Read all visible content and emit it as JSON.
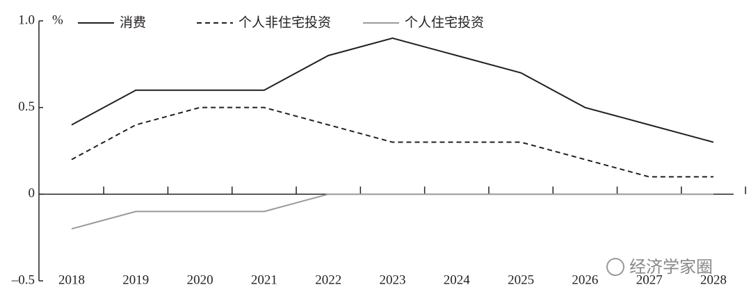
{
  "chart_data": {
    "type": "line",
    "y_label": "%",
    "categories": [
      "2018",
      "2019",
      "2020",
      "2021",
      "2022",
      "2023",
      "2024",
      "2025",
      "2026",
      "2027",
      "2028"
    ],
    "series": [
      {
        "name": "消费",
        "color": "#231f20",
        "style": "solid",
        "values": [
          0.4,
          0.6,
          0.6,
          0.6,
          0.8,
          0.9,
          0.8,
          0.7,
          0.5,
          0.4,
          0.3
        ]
      },
      {
        "name": "个人非住宅投资",
        "color": "#231f20",
        "style": "dashed",
        "values": [
          0.2,
          0.4,
          0.5,
          0.5,
          0.4,
          0.3,
          0.3,
          0.3,
          0.2,
          0.1,
          0.1
        ]
      },
      {
        "name": "个人住宅投资",
        "color": "#9a9a9a",
        "style": "solid",
        "values": [
          -0.2,
          -0.1,
          -0.1,
          -0.1,
          0,
          0,
          0,
          0,
          0,
          0,
          0
        ]
      }
    ],
    "ylim": [
      -0.5,
      1.0
    ],
    "yticks": [
      {
        "value": -0.5,
        "label": "–0.5"
      },
      0,
      0.5,
      {
        "value": 1.0,
        "label": "1.0"
      }
    ],
    "watermark": "经济学家圈"
  }
}
